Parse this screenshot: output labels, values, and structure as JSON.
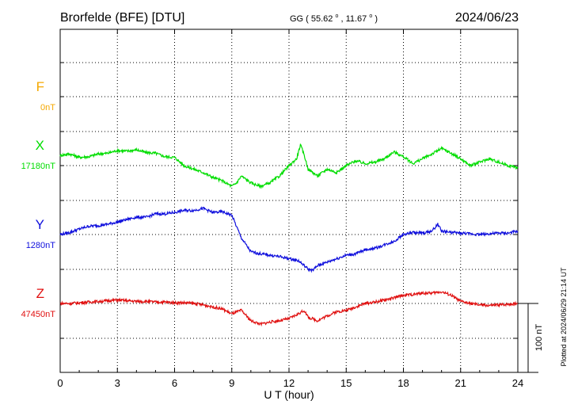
{
  "header": {
    "station": "Brorfelde (BFE)  [DTU]",
    "coords_prefix": "GG ( 55.62",
    "coords_mid": ",  11.67",
    "coords_suffix": ")",
    "degree_symbol": "o",
    "date": "2024/06/23"
  },
  "side_note": "Plotted at 2024/06/29 21:14 UT",
  "scale_bar_label": "100 nT",
  "chart_data": {
    "type": "line",
    "xlabel": "U T (hour)",
    "xlim": [
      0,
      24
    ],
    "xticks": [
      "0",
      "3",
      "6",
      "9",
      "12",
      "15",
      "18",
      "21",
      "24"
    ],
    "grid": true,
    "scale_nT_per_bar": 100,
    "series": [
      {
        "name": "F",
        "baseline_label": "0nT",
        "color": "#f5a800",
        "x": [],
        "y": []
      },
      {
        "name": "X",
        "baseline_label": "17180nT",
        "color": "#00dd00",
        "x": [
          0,
          0.5,
          1,
          1.5,
          2,
          2.5,
          3,
          3.5,
          4,
          4.5,
          5,
          5.5,
          6,
          6.5,
          7,
          7.5,
          8,
          8.5,
          9,
          9.25,
          9.5,
          10,
          10.5,
          11,
          11.5,
          12,
          12.4,
          12.6,
          12.8,
          13,
          13.5,
          14,
          14.5,
          15,
          15.5,
          16,
          16.5,
          17,
          17.5,
          18,
          18.5,
          19,
          19.5,
          20,
          20.5,
          21,
          21.5,
          22,
          22.5,
          23,
          23.5,
          24
        ],
        "y": [
          0,
          2,
          -3,
          -2,
          2,
          3,
          7,
          6,
          8,
          4,
          3,
          -2,
          -3,
          -15,
          -20,
          -25,
          -32,
          -37,
          -45,
          -40,
          -30,
          -40,
          -45,
          -40,
          -30,
          -15,
          -5,
          15,
          0,
          -20,
          -30,
          -20,
          -25,
          -15,
          -8,
          -12,
          -10,
          -5,
          5,
          -2,
          -12,
          -5,
          2,
          10,
          3,
          -5,
          -15,
          -10,
          -5,
          -10,
          -15,
          -18
        ]
      },
      {
        "name": "Y",
        "baseline_label": "1280nT",
        "color": "#1010dd",
        "x": [
          0,
          0.5,
          1,
          1.5,
          2,
          2.5,
          3,
          3.5,
          4,
          4.5,
          5,
          5.5,
          6,
          6.5,
          7,
          7.5,
          8,
          8.5,
          9,
          9.5,
          10,
          10.5,
          11,
          11.5,
          12,
          12.5,
          13,
          13.25,
          13.5,
          14,
          14.5,
          15,
          15.5,
          16,
          16.5,
          17,
          17.5,
          18,
          18.5,
          19,
          19.5,
          19.8,
          20,
          20.5,
          21,
          21.5,
          22,
          22.5,
          23,
          23.5,
          24
        ],
        "y": [
          0,
          3,
          8,
          12,
          13,
          15,
          18,
          22,
          25,
          25,
          30,
          30,
          32,
          35,
          35,
          38,
          32,
          33,
          28,
          -5,
          -25,
          -28,
          -30,
          -32,
          -35,
          -38,
          -50,
          -52,
          -45,
          -40,
          -35,
          -30,
          -28,
          -22,
          -20,
          -15,
          -10,
          0,
          3,
          2,
          5,
          15,
          5,
          3,
          2,
          1,
          0,
          1,
          2,
          2,
          5
        ]
      },
      {
        "name": "Z",
        "baseline_label": "47450nT",
        "color": "#e01010",
        "x": [
          0,
          0.5,
          1,
          1.5,
          2,
          2.5,
          3,
          3.5,
          4,
          4.5,
          5,
          5.5,
          6,
          6.5,
          7,
          7.5,
          8,
          8.5,
          9,
          9.5,
          10,
          10.5,
          11,
          11.5,
          12,
          12.5,
          12.8,
          13,
          13.5,
          14,
          14.5,
          15,
          15.5,
          16,
          16.5,
          17,
          17.5,
          18,
          18.5,
          19,
          19.5,
          20,
          20.5,
          21,
          21.5,
          22,
          22.5,
          23,
          23.5,
          24
        ],
        "y": [
          0,
          0,
          1,
          2,
          3,
          4,
          5,
          4,
          3,
          3,
          2,
          2,
          1,
          1,
          0,
          -2,
          -5,
          -8,
          -15,
          -10,
          -25,
          -30,
          -27,
          -25,
          -22,
          -15,
          -10,
          -20,
          -25,
          -18,
          -12,
          -10,
          -5,
          0,
          2,
          5,
          8,
          12,
          13,
          15,
          15,
          17,
          12,
          3,
          0,
          -2,
          -3,
          -2,
          -1,
          0
        ]
      }
    ]
  }
}
